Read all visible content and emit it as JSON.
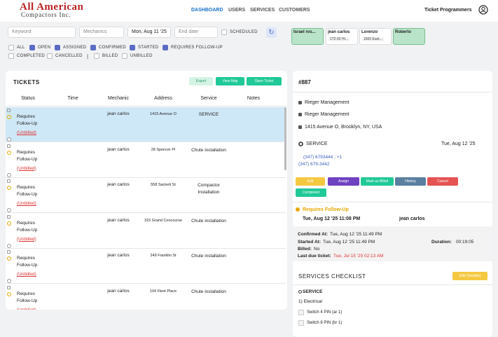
{
  "header": {
    "logo_line1": "All American",
    "logo_line2": "Compactors Inc.",
    "nav": [
      "DASHBOARD",
      "USERS",
      "SERVICES",
      "CUSTOMERS"
    ],
    "user": "Ticket Programmers"
  },
  "filters": {
    "keyword": "Keyword",
    "mechanics": "Mechanics",
    "date_from": "Mon, Aug 11 '25",
    "date_to": "End date",
    "scheduled": "SCHEDULED",
    "statuses": [
      {
        "label": "ALL",
        "checked": false
      },
      {
        "label": "OPEN",
        "checked": true
      },
      {
        "label": "ASSIGNED",
        "checked": true
      },
      {
        "label": "CONFIRMED",
        "checked": true
      },
      {
        "label": "STARTED",
        "checked": true
      },
      {
        "label": "REQUIRES FOLLOW-UP",
        "checked": true
      },
      {
        "label": "COMPLETED",
        "checked": false
      },
      {
        "label": "CANCELLED",
        "checked": false
      },
      {
        "label": "BILLED",
        "checked": false
      },
      {
        "label": "UNBILLED",
        "checked": false
      }
    ]
  },
  "mechanic_cards": [
    {
      "name": "Israel ros...",
      "active": true
    },
    {
      "name": "jean carlos",
      "sub": "172-02 Hi...",
      "active": false
    },
    {
      "name": "Lorenzo",
      "sub": "1600 East...",
      "active": false
    },
    {
      "name": "Roberto",
      "active": true
    }
  ],
  "tickets": {
    "title": "TICKETS",
    "buttons": [
      "Export",
      "View Map",
      "Open Ticket"
    ],
    "columns": [
      "Status",
      "Time",
      "Mechanic",
      "Address",
      "Service",
      "Notes"
    ],
    "rows": [
      {
        "status": "Requires Follow-Up",
        "billing": "(Unbilled)",
        "mechanic": "jean carlos",
        "address": "1415 Avenue O",
        "service": "SERVICE"
      },
      {
        "status": "Requires Follow-Up",
        "billing": "(Unbilled)",
        "mechanic": "jean carlos",
        "address": "28 Spencer Pl",
        "service": "Chute installation"
      },
      {
        "status": "Requires Follow-Up",
        "billing": "(Unbilled)",
        "mechanic": "jean carlos",
        "address": "558 Sackett St",
        "service": "Compactor Installation"
      },
      {
        "status": "Requires Follow-Up",
        "billing": "(Unbilled)",
        "mechanic": "jean carlos",
        "address": "315 Grand Concourse",
        "service": "Chute installation"
      },
      {
        "status": "Requires Follow-Up",
        "billing": "(Unbilled)",
        "mechanic": "jean carlos",
        "address": "249 Franklin St",
        "service": "Chute installation"
      },
      {
        "status": "Requires Follow-Up",
        "billing": "(Unbilled)",
        "mechanic": "jean carlos",
        "address": "104 Fleet Place",
        "service": "Chute installation"
      }
    ]
  },
  "detail": {
    "id": "#887",
    "customer": "Rieger Management",
    "location": "Rieger Management",
    "address": "1415 Avenue O, Brooklyn, NY, USA",
    "service": "SERVICE",
    "date": "Tue, Aug 12 '25",
    "phone": "(347) 6793444 ; +1",
    "phone2": "(347) 679-3442",
    "actions": [
      "Edit",
      "Assign",
      "Mark as Billed",
      "History",
      "Cancel",
      "Completed"
    ],
    "status": "Requires Follow-Up",
    "status_time": "Tue, Aug 12 '25 11:08 PM",
    "mechanic": "jean carlos",
    "confirmed_label": "Confirmed At:",
    "confirmed": "Tue, Aug 12 '25 11:49 PM",
    "started_label": "Started At:",
    "started": "Tue, Aug 12 '25 11:49 PM",
    "duration_label": "Duration:",
    "duration": "00:19:05",
    "billed_label": "Billed:",
    "billed": "No",
    "last_due_label": "Last due ticket:",
    "last_due": "Tue, Jul 15 '25 02:13 AM",
    "checklist_title": "SERVICES CHECKLIST",
    "checklist_button": "Edit Checklist",
    "checklist_section": "SERVICE",
    "checklist_group": "1) Electrical",
    "checklist_items": [
      "Switch 4 PIN (ar 1)",
      "Switch 8 PIN (br 1)"
    ]
  }
}
